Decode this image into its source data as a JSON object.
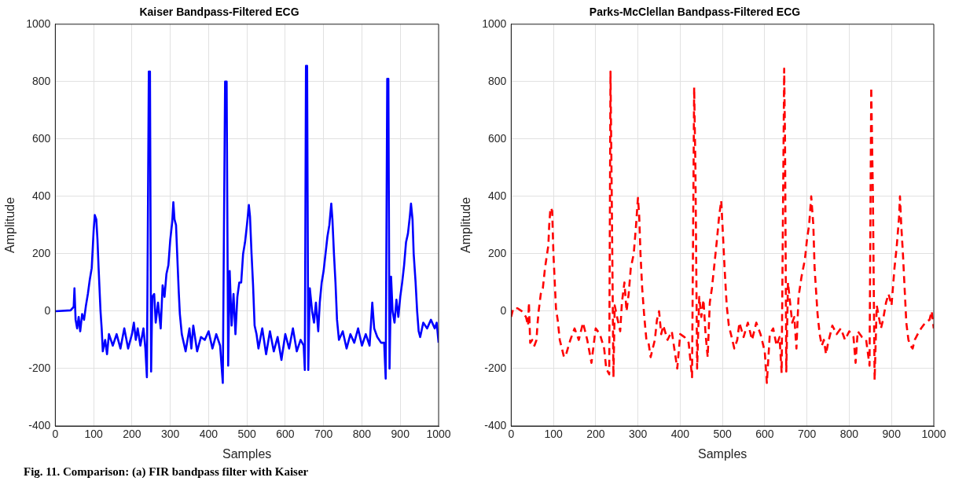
{
  "chart_data": [
    {
      "type": "line",
      "title": "Kaiser Bandpass-Filtered ECG",
      "xlabel": "Samples",
      "ylabel": "Amplitude",
      "xlim": [
        0,
        1000
      ],
      "ylim": [
        -400,
        1000
      ],
      "xticks": [
        0,
        100,
        200,
        300,
        400,
        500,
        600,
        700,
        800,
        900,
        1000
      ],
      "yticks": [
        -400,
        -200,
        0,
        200,
        400,
        600,
        800,
        1000
      ],
      "grid": true,
      "line_style": "solid",
      "annotations": [
        "Fig. 11. Comparison: (a) FIR bandpass filter with Kaiser"
      ],
      "x": [
        0,
        40,
        48,
        50,
        53,
        57,
        61,
        65,
        70,
        75,
        80,
        85,
        90,
        95,
        100,
        103,
        107,
        110,
        113,
        118,
        121,
        124,
        130,
        135,
        140,
        150,
        160,
        170,
        180,
        190,
        200,
        205,
        210,
        215,
        222,
        230,
        235,
        239,
        244,
        247,
        250,
        253,
        258,
        262,
        268,
        275,
        280,
        285,
        290,
        295,
        300,
        305,
        308,
        311,
        315,
        318,
        322,
        325,
        330,
        340,
        350,
        355,
        360,
        370,
        380,
        390,
        400,
        410,
        420,
        430,
        437,
        443,
        447,
        451,
        455,
        460,
        465,
        470,
        475,
        480,
        485,
        490,
        495,
        500,
        505,
        508,
        512,
        516,
        520,
        525,
        530,
        540,
        550,
        560,
        570,
        580,
        590,
        600,
        610,
        620,
        630,
        640,
        648,
        651,
        654,
        657,
        660,
        664,
        670,
        675,
        680,
        686,
        690,
        695,
        700,
        705,
        710,
        715,
        720,
        723,
        727,
        731,
        735,
        740,
        750,
        760,
        770,
        780,
        790,
        800,
        810,
        820,
        827,
        832,
        840,
        850,
        858,
        862,
        866,
        869,
        872,
        876,
        880,
        885,
        890,
        895,
        900,
        905,
        910,
        915,
        920,
        925,
        928,
        932,
        935,
        940,
        944,
        948,
        952,
        960,
        970,
        980,
        990,
        995,
        1000
      ],
      "series": [
        {
          "color": "#0000ff",
          "values": [
            0,
            3,
            15,
            80,
            -30,
            -60,
            -20,
            -70,
            -10,
            -30,
            20,
            60,
            110,
            150,
            280,
            335,
            320,
            250,
            150,
            0,
            -60,
            -140,
            -100,
            -150,
            -80,
            -120,
            -80,
            -130,
            -60,
            -130,
            -80,
            -40,
            -100,
            -60,
            -120,
            -60,
            -130,
            -230,
            835,
            835,
            -210,
            50,
            60,
            -40,
            30,
            -60,
            90,
            50,
            130,
            160,
            250,
            310,
            380,
            320,
            300,
            200,
            70,
            -10,
            -80,
            -140,
            -60,
            -130,
            -50,
            -140,
            -90,
            -100,
            -70,
            -130,
            -80,
            -120,
            -250,
            800,
            800,
            -190,
            140,
            -50,
            60,
            -80,
            50,
            100,
            100,
            200,
            240,
            300,
            370,
            330,
            200,
            90,
            -50,
            -80,
            -130,
            -60,
            -150,
            -70,
            -140,
            -90,
            -170,
            -80,
            -130,
            -60,
            -140,
            -100,
            -120,
            -205,
            855,
            855,
            -205,
            80,
            0,
            -40,
            30,
            -70,
            30,
            100,
            140,
            200,
            260,
            300,
            375,
            320,
            200,
            100,
            -30,
            -100,
            -70,
            -130,
            -80,
            -110,
            -60,
            -120,
            -80,
            -120,
            30,
            -60,
            -90,
            -110,
            -110,
            -235,
            810,
            810,
            -200,
            120,
            0,
            -40,
            40,
            -20,
            50,
            100,
            160,
            240,
            270,
            330,
            375,
            320,
            200,
            100,
            0,
            -70,
            -90,
            -40,
            -60,
            -30,
            -60,
            -40,
            -110
          ]
        }
      ]
    },
    {
      "type": "line",
      "title": "Parks-McClellan Bandpass-Filtered ECG",
      "xlabel": "Samples",
      "ylabel": "Amplitude",
      "xlim": [
        0,
        1000
      ],
      "ylim": [
        -400,
        1000
      ],
      "xticks": [
        0,
        100,
        200,
        300,
        400,
        500,
        600,
        700,
        800,
        900,
        1000
      ],
      "yticks": [
        -400,
        -200,
        0,
        200,
        400,
        600,
        800,
        1000
      ],
      "grid": true,
      "line_style": "dashed",
      "x": [
        0,
        5,
        15,
        25,
        35,
        40,
        42,
        45,
        50,
        55,
        60,
        62,
        65,
        70,
        75,
        80,
        85,
        88,
        90,
        93,
        97,
        100,
        106,
        110,
        115,
        120,
        125,
        130,
        140,
        150,
        160,
        170,
        180,
        190,
        200,
        210,
        220,
        225,
        232,
        235,
        238,
        242,
        245,
        252,
        258,
        262,
        268,
        273,
        278,
        283,
        290,
        295,
        300,
        303,
        306,
        310,
        315,
        320,
        325,
        330,
        340,
        345,
        350,
        355,
        360,
        370,
        380,
        393,
        400,
        410,
        420,
        428,
        433,
        436,
        440,
        445,
        450,
        455,
        460,
        465,
        470,
        475,
        480,
        487,
        492,
        497,
        500,
        505,
        510,
        515,
        520,
        528,
        535,
        540,
        550,
        560,
        570,
        580,
        590,
        600,
        605,
        612,
        620,
        628,
        635,
        640,
        646,
        648,
        651,
        655,
        660,
        665,
        670,
        675,
        680,
        687,
        695,
        700,
        705,
        710,
        715,
        718,
        725,
        730,
        735,
        740,
        745,
        750,
        760,
        770,
        780,
        790,
        800,
        810,
        815,
        820,
        830,
        840,
        848,
        852,
        856,
        860,
        865,
        870,
        875,
        880,
        887,
        893,
        900,
        907,
        912,
        918,
        920,
        923,
        927,
        935,
        940,
        945,
        950,
        955,
        962,
        970,
        980,
        990,
        995,
        1000
      ],
      "series": [
        {
          "color": "#ff0000",
          "values": [
            -20,
            10,
            10,
            0,
            -20,
            -50,
            30,
            -110,
            -100,
            -120,
            -100,
            -50,
            0,
            60,
            80,
            150,
            200,
            230,
            300,
            360,
            350,
            200,
            10,
            -30,
            -100,
            -130,
            -160,
            -150,
            -100,
            -60,
            -100,
            -40,
            -100,
            -180,
            -60,
            -80,
            -130,
            -200,
            -220,
            835,
            400,
            -230,
            20,
            -30,
            -70,
            30,
            100,
            0,
            60,
            150,
            200,
            290,
            395,
            330,
            200,
            80,
            -20,
            -100,
            -110,
            -160,
            -100,
            -30,
            0,
            -80,
            -50,
            -100,
            -70,
            -200,
            -80,
            -90,
            -110,
            -230,
            780,
            500,
            -200,
            50,
            -20,
            40,
            -80,
            -160,
            30,
            80,
            150,
            250,
            330,
            385,
            300,
            150,
            20,
            -50,
            -80,
            -130,
            -100,
            -40,
            -90,
            -40,
            -100,
            -40,
            -80,
            -140,
            -250,
            -80,
            -60,
            -120,
            -90,
            -215,
            845,
            600,
            -210,
            100,
            30,
            -40,
            -20,
            -130,
            50,
            120,
            180,
            250,
            300,
            400,
            300,
            150,
            -10,
            -80,
            -120,
            -100,
            -150,
            -110,
            -50,
            -80,
            -60,
            -100,
            -70,
            -90,
            -180,
            -70,
            -90,
            -100,
            -190,
            780,
            400,
            -240,
            20,
            -20,
            -60,
            -30,
            30,
            60,
            20,
            150,
            220,
            330,
            400,
            300,
            200,
            -40,
            -100,
            -120,
            -130,
            -100,
            -80,
            -60,
            -40,
            -30,
            0,
            -60
          ]
        }
      ]
    }
  ]
}
